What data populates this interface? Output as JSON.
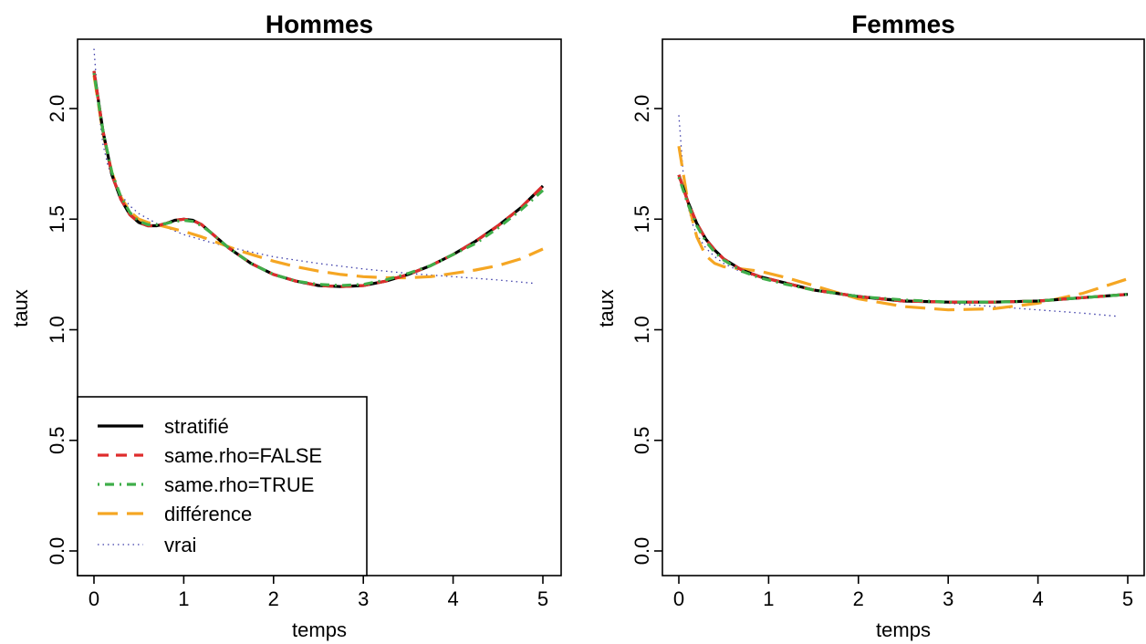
{
  "chart_data": [
    {
      "type": "line",
      "title": "Hommes",
      "xlabel": "temps",
      "ylabel": "taux",
      "xlim": [
        0,
        5
      ],
      "ylim": [
        0.0,
        2.25
      ],
      "xticks": [
        "0",
        "1",
        "2",
        "3",
        "4",
        "5"
      ],
      "yticks": [
        "0.0",
        "0.5",
        "1.0",
        "1.5",
        "2.0"
      ],
      "legend": {
        "placement": "bottom-left",
        "entries": [
          "stratifié",
          "same.rho=FALSE",
          "same.rho=TRUE",
          "différence",
          "vrai"
        ]
      },
      "series": [
        {
          "name": "stratifié",
          "color": "#000000",
          "style": "solid",
          "x": [
            0,
            0.1,
            0.2,
            0.3,
            0.4,
            0.5,
            0.6,
            0.7,
            0.8,
            0.9,
            1.0,
            1.1,
            1.2,
            1.3,
            1.5,
            1.75,
            2.0,
            2.25,
            2.5,
            2.75,
            3.0,
            3.25,
            3.5,
            3.75,
            4.0,
            4.25,
            4.5,
            4.75,
            5.0
          ],
          "y": [
            2.17,
            1.9,
            1.7,
            1.59,
            1.52,
            1.485,
            1.47,
            1.47,
            1.48,
            1.495,
            1.5,
            1.495,
            1.475,
            1.44,
            1.37,
            1.3,
            1.25,
            1.22,
            1.2,
            1.195,
            1.2,
            1.22,
            1.25,
            1.29,
            1.34,
            1.4,
            1.47,
            1.55,
            1.65
          ]
        },
        {
          "name": "same.rho=FALSE",
          "color": "#df2c2c",
          "style": "dashed",
          "x": [
            0,
            0.1,
            0.2,
            0.3,
            0.4,
            0.5,
            0.6,
            0.7,
            0.8,
            0.9,
            1.0,
            1.1,
            1.2,
            1.3,
            1.5,
            1.75,
            2.0,
            2.25,
            2.5,
            2.75,
            3.0,
            3.25,
            3.5,
            3.75,
            4.0,
            4.25,
            4.5,
            4.75,
            5.0
          ],
          "y": [
            2.17,
            1.9,
            1.7,
            1.59,
            1.52,
            1.485,
            1.47,
            1.47,
            1.48,
            1.495,
            1.5,
            1.495,
            1.475,
            1.44,
            1.37,
            1.3,
            1.25,
            1.22,
            1.2,
            1.195,
            1.2,
            1.22,
            1.25,
            1.29,
            1.34,
            1.4,
            1.47,
            1.55,
            1.65
          ]
        },
        {
          "name": "same.rho=TRUE",
          "color": "#3fae49",
          "style": "dotdash",
          "x": [
            0,
            0.1,
            0.2,
            0.3,
            0.4,
            0.5,
            0.6,
            0.7,
            0.8,
            0.9,
            1.0,
            1.1,
            1.2,
            1.3,
            1.5,
            1.75,
            2.0,
            2.25,
            2.5,
            2.75,
            3.0,
            3.25,
            3.5,
            3.75,
            4.0,
            4.25,
            4.5,
            4.75,
            5.0
          ],
          "y": [
            2.16,
            1.9,
            1.71,
            1.6,
            1.53,
            1.49,
            1.475,
            1.475,
            1.48,
            1.49,
            1.495,
            1.49,
            1.47,
            1.44,
            1.37,
            1.3,
            1.25,
            1.22,
            1.205,
            1.2,
            1.205,
            1.225,
            1.255,
            1.29,
            1.34,
            1.39,
            1.46,
            1.54,
            1.63
          ]
        },
        {
          "name": "différence",
          "color": "#f5a623",
          "style": "longdash",
          "x": [
            0,
            0.1,
            0.2,
            0.3,
            0.4,
            0.5,
            0.6,
            0.7,
            0.8,
            0.9,
            1.0,
            1.2,
            1.4,
            1.6,
            1.8,
            2.0,
            2.25,
            2.5,
            2.75,
            3.0,
            3.25,
            3.5,
            3.75,
            4.0,
            4.25,
            4.5,
            4.75,
            5.0
          ],
          "y": [
            2.15,
            1.89,
            1.71,
            1.6,
            1.535,
            1.5,
            1.485,
            1.475,
            1.465,
            1.455,
            1.445,
            1.42,
            1.39,
            1.36,
            1.335,
            1.31,
            1.285,
            1.265,
            1.25,
            1.24,
            1.235,
            1.235,
            1.24,
            1.255,
            1.27,
            1.29,
            1.32,
            1.365
          ]
        },
        {
          "name": "vrai",
          "color": "#3b3ba8",
          "style": "dotted",
          "x": [
            0,
            0.05,
            0.1,
            0.15,
            0.2,
            0.3,
            0.4,
            0.5,
            0.7,
            1.0,
            1.3,
            1.6,
            2.0,
            2.5,
            3.0,
            3.5,
            4.0,
            4.5,
            4.9
          ],
          "y": [
            2.27,
            2.0,
            1.84,
            1.75,
            1.69,
            1.61,
            1.56,
            1.525,
            1.48,
            1.43,
            1.395,
            1.365,
            1.33,
            1.3,
            1.275,
            1.255,
            1.24,
            1.225,
            1.21
          ]
        }
      ]
    },
    {
      "type": "line",
      "title": "Femmes",
      "xlabel": "temps",
      "ylabel": "taux",
      "xlim": [
        0,
        5
      ],
      "ylim": [
        0.0,
        2.25
      ],
      "xticks": [
        "0",
        "1",
        "2",
        "3",
        "4",
        "5"
      ],
      "yticks": [
        "0.0",
        "0.5",
        "1.0",
        "1.5",
        "2.0"
      ],
      "series": [
        {
          "name": "stratifié",
          "color": "#000000",
          "style": "solid",
          "x": [
            0,
            0.1,
            0.2,
            0.3,
            0.4,
            0.5,
            0.7,
            0.9,
            1.2,
            1.5,
            2.0,
            2.5,
            3.0,
            3.5,
            4.0,
            4.5,
            5.0
          ],
          "y": [
            1.7,
            1.58,
            1.48,
            1.41,
            1.36,
            1.32,
            1.27,
            1.24,
            1.21,
            1.18,
            1.15,
            1.13,
            1.125,
            1.125,
            1.13,
            1.145,
            1.16
          ]
        },
        {
          "name": "same.rho=FALSE",
          "color": "#df2c2c",
          "style": "dashed",
          "x": [
            0,
            0.1,
            0.2,
            0.3,
            0.4,
            0.5,
            0.7,
            0.9,
            1.2,
            1.5,
            2.0,
            2.5,
            3.0,
            3.5,
            4.0,
            4.5,
            5.0
          ],
          "y": [
            1.7,
            1.58,
            1.48,
            1.41,
            1.36,
            1.32,
            1.27,
            1.24,
            1.21,
            1.18,
            1.15,
            1.13,
            1.125,
            1.125,
            1.13,
            1.145,
            1.16
          ]
        },
        {
          "name": "same.rho=TRUE",
          "color": "#3fae49",
          "style": "dotdash",
          "x": [
            0,
            0.1,
            0.2,
            0.3,
            0.4,
            0.5,
            0.7,
            0.9,
            1.2,
            1.5,
            2.0,
            2.5,
            3.0,
            3.5,
            4.0,
            4.5,
            5.0
          ],
          "y": [
            1.69,
            1.57,
            1.47,
            1.4,
            1.35,
            1.315,
            1.265,
            1.235,
            1.205,
            1.18,
            1.15,
            1.135,
            1.125,
            1.125,
            1.13,
            1.145,
            1.16
          ]
        },
        {
          "name": "différence",
          "color": "#f5a623",
          "style": "longdash",
          "x": [
            0,
            0.1,
            0.2,
            0.3,
            0.4,
            0.5,
            0.7,
            0.9,
            1.2,
            1.5,
            2.0,
            2.5,
            3.0,
            3.5,
            4.0,
            4.5,
            5.0
          ],
          "y": [
            1.83,
            1.58,
            1.42,
            1.335,
            1.3,
            1.285,
            1.275,
            1.265,
            1.235,
            1.2,
            1.14,
            1.105,
            1.09,
            1.095,
            1.12,
            1.165,
            1.23
          ]
        },
        {
          "name": "vrai",
          "color": "#3b3ba8",
          "style": "dotted",
          "x": [
            0,
            0.05,
            0.1,
            0.15,
            0.2,
            0.3,
            0.4,
            0.5,
            0.7,
            1.0,
            1.5,
            2.0,
            2.5,
            3.0,
            3.5,
            4.0,
            4.5,
            4.9
          ],
          "y": [
            1.97,
            1.7,
            1.56,
            1.48,
            1.43,
            1.37,
            1.33,
            1.3,
            1.26,
            1.225,
            1.18,
            1.155,
            1.135,
            1.12,
            1.105,
            1.09,
            1.075,
            1.06
          ]
        }
      ]
    }
  ]
}
